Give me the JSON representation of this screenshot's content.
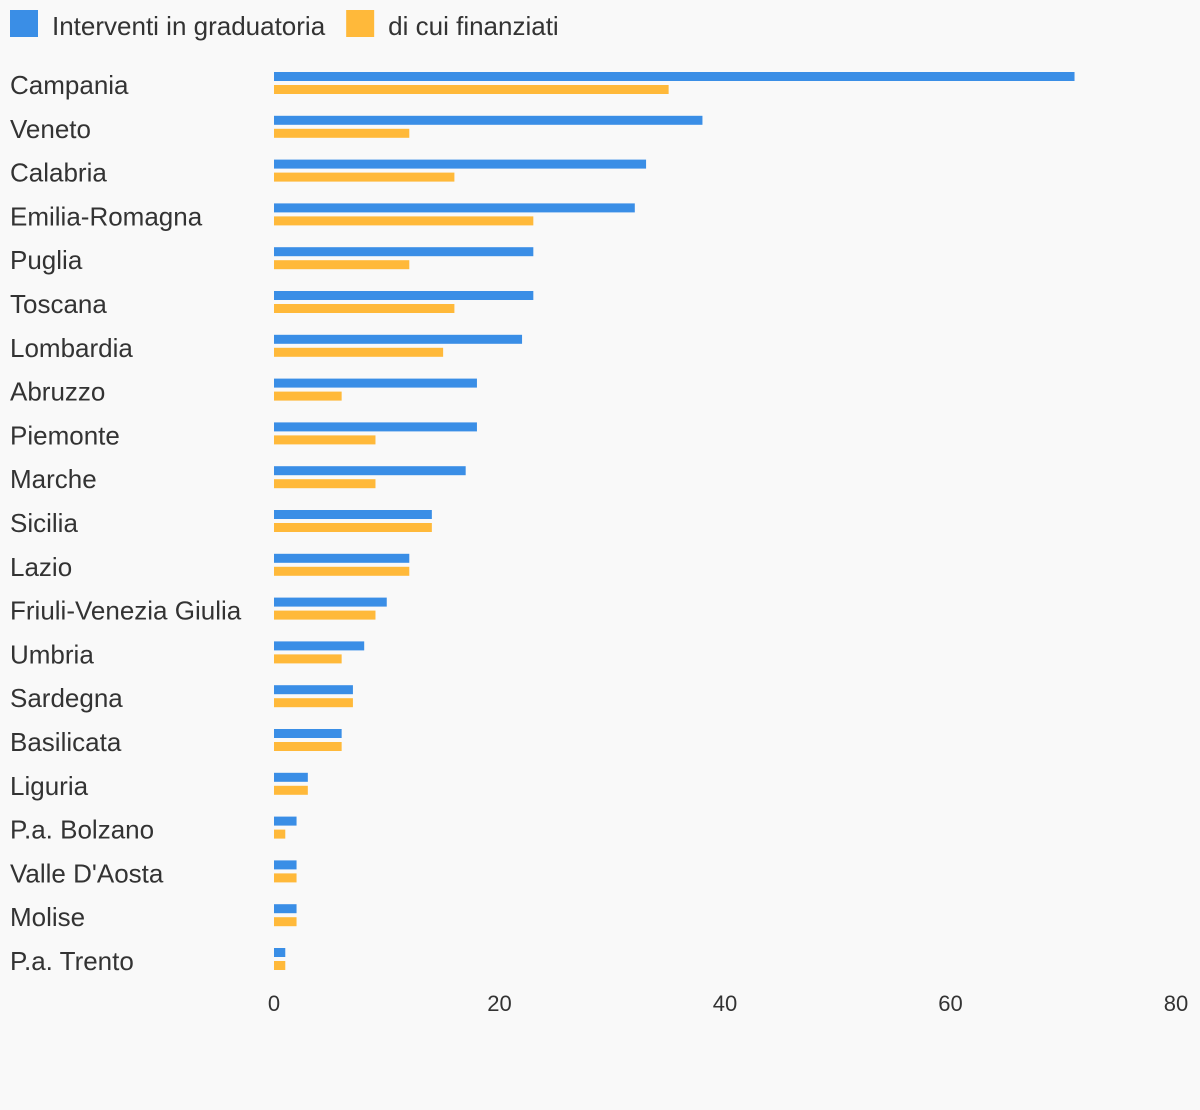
{
  "chart_data": {
    "type": "bar",
    "orientation": "horizontal",
    "categories": [
      "Campania",
      "Veneto",
      "Calabria",
      "Emilia-Romagna",
      "Puglia",
      "Toscana",
      "Lombardia",
      "Abruzzo",
      "Piemonte",
      "Marche",
      "Sicilia",
      "Lazio",
      "Friuli-Venezia Giulia",
      "Umbria",
      "Sardegna",
      "Basilicata",
      "Liguria",
      "P.a. Bolzano",
      "Valle D'Aosta",
      "Molise",
      "P.a. Trento"
    ],
    "series": [
      {
        "name": "Interventi in graduatoria",
        "color": "#3a8ee6",
        "values": [
          71,
          38,
          33,
          32,
          23,
          23,
          22,
          18,
          18,
          17,
          14,
          12,
          10,
          8,
          7,
          6,
          3,
          2,
          2,
          2,
          1
        ]
      },
      {
        "name": "di cui finanziati",
        "color": "#ffb93a",
        "values": [
          35,
          12,
          16,
          23,
          12,
          16,
          15,
          6,
          9,
          9,
          14,
          12,
          9,
          6,
          7,
          6,
          3,
          1,
          2,
          2,
          1
        ]
      }
    ],
    "xlim": [
      0,
      80
    ],
    "xticks": [
      0,
      20,
      40,
      60,
      80
    ],
    "grid": false,
    "legend_position": "top-left"
  }
}
